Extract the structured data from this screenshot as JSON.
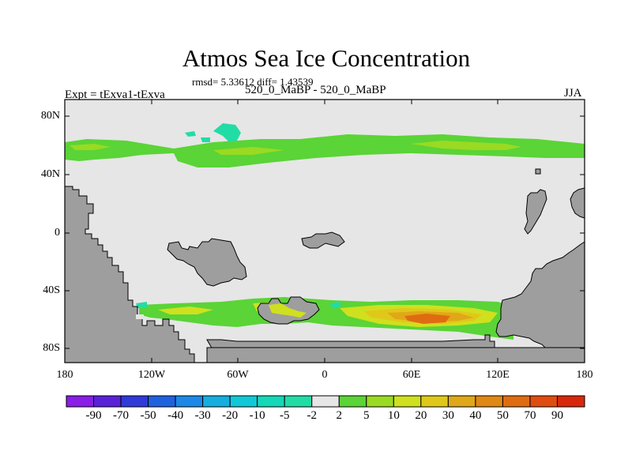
{
  "title": "Atmos Sea Ice Concentration",
  "stats": "rmsd= 5.33612 diff= 1.43539",
  "expt": "Expt = tExva1-tExva",
  "period": "520_0_MaBP - 520_0_MaBP",
  "season": "JJA",
  "lat_ticks": [
    "80N",
    "40N",
    "0",
    "40S",
    "80S"
  ],
  "lon_ticks": [
    "180",
    "120W",
    "60W",
    "0",
    "60E",
    "120E",
    "180"
  ],
  "colorbar": {
    "labels": [
      "-90",
      "-70",
      "-50",
      "-40",
      "-30",
      "-20",
      "-10",
      "-5",
      "-2",
      "2",
      "5",
      "10",
      "20",
      "30",
      "40",
      "50",
      "70",
      "90"
    ],
    "colors": [
      "#8a1de6",
      "#5a22d8",
      "#2f3ad8",
      "#1f62e0",
      "#1d88e8",
      "#15aee0",
      "#10c8d8",
      "#14d8b8",
      "#22dca6",
      "#e6e6e6",
      "#5ad436",
      "#9ada22",
      "#cfe01e",
      "#e0c81a",
      "#e0a818",
      "#e08814",
      "#e06c12",
      "#e04c10",
      "#d8280c"
    ]
  },
  "colors": {
    "land": "#9e9e9e",
    "no_change": "#e6e6e6",
    "increase_low": "#5ad436",
    "increase_mid": "#cfe01e",
    "increase_high": "#e06c12",
    "decrease_low": "#22dca6"
  }
}
